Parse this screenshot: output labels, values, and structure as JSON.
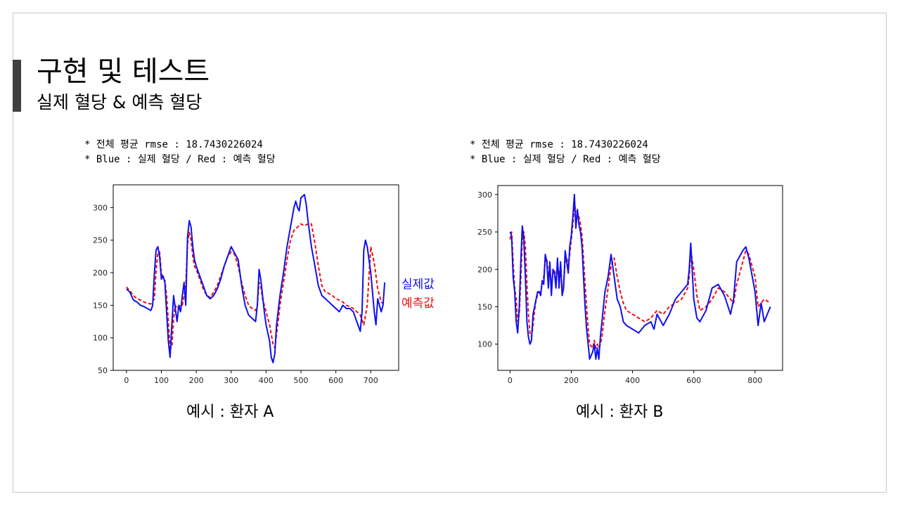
{
  "slide": {
    "title": "구현 및 테스트",
    "subtitle": "실제 혈당 & 예측 혈당",
    "legend_actual": "실제값",
    "legend_predicted": "예측값",
    "colors": {
      "actual": "#1010ee",
      "predicted": "#ee1010",
      "accent": "#404040"
    }
  },
  "panels": [
    {
      "note_line1": "* 전체 평균 rmse : 18.7430226024",
      "note_line2": "* Blue : 실제 혈당 / Red : 예측 혈당",
      "caption": "예시 : 환자 A"
    },
    {
      "note_line1": "* 전체 평균 rmse : 18.7430226024",
      "note_line2": "* Blue : 실제 혈당 / Red : 예측 혈당",
      "caption": "예시 : 환자 B"
    }
  ],
  "chart_data": [
    {
      "type": "line",
      "title": "",
      "xlabel": "",
      "ylabel": "",
      "xlim": [
        -38,
        780
      ],
      "ylim": [
        50,
        335
      ],
      "xticks": [
        0,
        100,
        200,
        300,
        400,
        500,
        600,
        700
      ],
      "yticks": [
        50,
        100,
        150,
        200,
        250,
        300
      ],
      "grid": false,
      "series": [
        {
          "style": "solid",
          "color": "#1010ee",
          "x": [
            0,
            10,
            20,
            30,
            40,
            50,
            60,
            70,
            75,
            80,
            85,
            90,
            95,
            100,
            105,
            110,
            115,
            120,
            125,
            130,
            135,
            140,
            145,
            150,
            155,
            160,
            165,
            170,
            175,
            180,
            185,
            190,
            195,
            200,
            210,
            220,
            230,
            240,
            250,
            260,
            270,
            280,
            290,
            300,
            305,
            310,
            320,
            330,
            340,
            350,
            360,
            370,
            375,
            380,
            385,
            390,
            395,
            400,
            410,
            415,
            420,
            425,
            430,
            440,
            450,
            460,
            470,
            480,
            485,
            490,
            495,
            500,
            510,
            515,
            520,
            530,
            540,
            550,
            560,
            570,
            580,
            590,
            600,
            610,
            620,
            630,
            640,
            650,
            660,
            670,
            675,
            680,
            685,
            690,
            700,
            710,
            715,
            720,
            730,
            735,
            740
          ],
          "y": [
            175,
            170,
            158,
            155,
            150,
            148,
            145,
            142,
            150,
            200,
            235,
            240,
            225,
            190,
            195,
            185,
            140,
            95,
            70,
            120,
            165,
            145,
            125,
            150,
            140,
            165,
            185,
            150,
            255,
            280,
            270,
            240,
            220,
            210,
            195,
            180,
            165,
            160,
            165,
            175,
            190,
            210,
            225,
            240,
            235,
            230,
            220,
            180,
            150,
            135,
            130,
            125,
            150,
            205,
            190,
            165,
            140,
            120,
            95,
            70,
            62,
            75,
            120,
            165,
            200,
            240,
            270,
            300,
            310,
            300,
            295,
            315,
            320,
            305,
            280,
            240,
            210,
            180,
            165,
            160,
            155,
            150,
            145,
            140,
            150,
            145,
            145,
            140,
            125,
            110,
            140,
            235,
            250,
            240,
            200,
            140,
            120,
            160,
            140,
            150,
            185
          ]
        },
        {
          "style": "dashed",
          "color": "#ee1010",
          "x": [
            0,
            10,
            20,
            30,
            40,
            50,
            60,
            70,
            80,
            85,
            90,
            95,
            100,
            105,
            110,
            115,
            120,
            125,
            130,
            135,
            140,
            145,
            150,
            155,
            160,
            165,
            170,
            175,
            180,
            185,
            190,
            195,
            200,
            210,
            220,
            230,
            240,
            250,
            260,
            270,
            280,
            290,
            300,
            310,
            320,
            330,
            340,
            350,
            360,
            370,
            375,
            380,
            385,
            390,
            400,
            410,
            420,
            425,
            430,
            440,
            450,
            460,
            470,
            480,
            490,
            500,
            510,
            520,
            530,
            540,
            550,
            560,
            570,
            580,
            590,
            600,
            610,
            620,
            630,
            640,
            650,
            660,
            670,
            680,
            690,
            700,
            710,
            720,
            730,
            740
          ],
          "y": [
            178,
            172,
            165,
            160,
            158,
            155,
            153,
            152,
            160,
            205,
            230,
            232,
            200,
            192,
            188,
            165,
            125,
            85,
            85,
            130,
            150,
            145,
            148,
            150,
            150,
            165,
            180,
            245,
            262,
            250,
            225,
            210,
            205,
            190,
            175,
            165,
            162,
            170,
            180,
            195,
            210,
            225,
            232,
            228,
            210,
            185,
            165,
            150,
            145,
            142,
            150,
            185,
            180,
            160,
            140,
            120,
            90,
            85,
            105,
            150,
            185,
            220,
            250,
            265,
            270,
            275,
            272,
            275,
            275,
            245,
            210,
            180,
            170,
            168,
            165,
            160,
            158,
            155,
            150,
            148,
            145,
            140,
            135,
            120,
            150,
            240,
            215,
            175,
            155,
            150
          ]
        }
      ]
    },
    {
      "type": "line",
      "title": "",
      "xlabel": "",
      "ylabel": "",
      "xlim": [
        -40,
        890
      ],
      "ylim": [
        65,
        312
      ],
      "xticks": [
        0,
        200,
        400,
        600,
        800
      ],
      "yticks": [
        100,
        150,
        200,
        250,
        300
      ],
      "grid": false,
      "series": [
        {
          "style": "solid",
          "color": "#1010ee",
          "x": [
            0,
            5,
            10,
            15,
            20,
            25,
            30,
            35,
            40,
            45,
            50,
            55,
            60,
            65,
            70,
            75,
            80,
            85,
            90,
            95,
            100,
            105,
            110,
            115,
            120,
            125,
            130,
            135,
            140,
            145,
            150,
            155,
            160,
            165,
            170,
            175,
            180,
            185,
            190,
            195,
            200,
            205,
            210,
            215,
            220,
            225,
            230,
            235,
            240,
            245,
            250,
            255,
            260,
            270,
            275,
            280,
            285,
            290,
            295,
            300,
            310,
            320,
            330,
            340,
            350,
            360,
            370,
            380,
            400,
            420,
            440,
            460,
            470,
            480,
            500,
            520,
            540,
            560,
            580,
            585,
            590,
            600,
            610,
            620,
            640,
            660,
            680,
            700,
            720,
            730,
            740,
            760,
            770,
            780,
            800,
            810,
            820,
            830,
            850
          ],
          "y": [
            250,
            245,
            190,
            170,
            130,
            115,
            150,
            210,
            258,
            240,
            190,
            130,
            110,
            100,
            105,
            140,
            150,
            160,
            170,
            170,
            165,
            185,
            180,
            220,
            210,
            175,
            210,
            165,
            200,
            195,
            175,
            215,
            175,
            210,
            165,
            175,
            225,
            210,
            195,
            230,
            245,
            270,
            300,
            255,
            280,
            260,
            250,
            230,
            190,
            150,
            120,
            100,
            80,
            90,
            100,
            80,
            95,
            80,
            110,
            130,
            170,
            190,
            220,
            190,
            160,
            150,
            130,
            125,
            120,
            115,
            125,
            130,
            120,
            140,
            125,
            140,
            160,
            170,
            180,
            200,
            235,
            160,
            135,
            130,
            145,
            175,
            180,
            165,
            140,
            160,
            210,
            225,
            230,
            215,
            170,
            125,
            155,
            130,
            150
          ]
        },
        {
          "style": "dashed",
          "color": "#ee1010",
          "x": [
            0,
            5,
            10,
            15,
            20,
            25,
            30,
            35,
            40,
            45,
            50,
            55,
            60,
            65,
            70,
            75,
            80,
            85,
            90,
            95,
            100,
            105,
            110,
            115,
            120,
            125,
            130,
            135,
            140,
            145,
            150,
            155,
            160,
            165,
            170,
            175,
            180,
            185,
            190,
            195,
            200,
            205,
            210,
            215,
            220,
            225,
            230,
            235,
            240,
            245,
            250,
            255,
            260,
            270,
            275,
            280,
            285,
            290,
            295,
            300,
            310,
            320,
            330,
            340,
            350,
            360,
            370,
            380,
            400,
            420,
            440,
            460,
            470,
            480,
            500,
            520,
            540,
            560,
            580,
            585,
            590,
            600,
            610,
            620,
            640,
            660,
            680,
            700,
            720,
            730,
            740,
            760,
            770,
            780,
            800,
            810,
            820,
            830,
            850
          ],
          "y": [
            240,
            250,
            210,
            175,
            160,
            130,
            140,
            185,
            240,
            250,
            230,
            180,
            140,
            115,
            110,
            125,
            145,
            160,
            165,
            170,
            170,
            180,
            190,
            210,
            215,
            190,
            200,
            180,
            195,
            200,
            185,
            205,
            190,
            205,
            175,
            180,
            210,
            215,
            205,
            220,
            240,
            260,
            285,
            280,
            275,
            270,
            260,
            245,
            215,
            180,
            150,
            120,
            100,
            95,
            105,
            95,
            100,
            95,
            100,
            110,
            145,
            175,
            205,
            215,
            190,
            170,
            155,
            145,
            140,
            135,
            130,
            135,
            140,
            145,
            140,
            150,
            155,
            160,
            175,
            190,
            225,
            200,
            165,
            145,
            150,
            160,
            175,
            170,
            160,
            155,
            180,
            210,
            225,
            220,
            190,
            150,
            155,
            160,
            155
          ]
        }
      ]
    }
  ]
}
